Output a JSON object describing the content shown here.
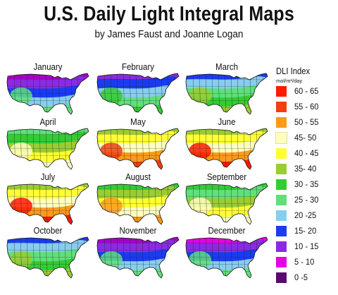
{
  "title": "U.S. Daily Light Integral Maps",
  "subtitle": "by James Faust and Joanne Logan",
  "legend": {
    "title": "DLI Index",
    "unit": "mol/m²/day",
    "items": [
      {
        "label": "60 - 65",
        "color": "#ff1a00"
      },
      {
        "label": "55 - 60",
        "color": "#f04010"
      },
      {
        "label": "50 - 55",
        "color": "#ff9a1a"
      },
      {
        "label": "45- 50",
        "color": "#ffffc0"
      },
      {
        "label": "40 - 45",
        "color": "#ffff33"
      },
      {
        "label": "35- 40",
        "color": "#9acd32"
      },
      {
        "label": "30 - 35",
        "color": "#33cc33"
      },
      {
        "label": "25 - 30",
        "color": "#5fe07a"
      },
      {
        "label": "20 -25",
        "color": "#87cdee"
      },
      {
        "label": "15- 20",
        "color": "#1a3cf0"
      },
      {
        "label": "10 - 15",
        "color": "#8a2be2"
      },
      {
        "label": "5 - 10",
        "color": "#e600e6"
      },
      {
        "label": "0 -5",
        "color": "#5a0a6e"
      }
    ]
  },
  "maps": [
    {
      "month": "January",
      "bands": [
        "#a600c8",
        "#8a2be2",
        "#1a3cf0",
        "#87cdee",
        "#5fe07a"
      ]
    },
    {
      "month": "February",
      "bands": [
        "#8a2be2",
        "#1a3cf0",
        "#87cdee",
        "#5fe07a",
        "#33cc33"
      ]
    },
    {
      "month": "March",
      "bands": [
        "#1a3cf0",
        "#87cdee",
        "#5fe07a",
        "#33cc33",
        "#9acd32"
      ]
    },
    {
      "month": "April",
      "bands": [
        "#5fe07a",
        "#33cc33",
        "#9acd32",
        "#ffff33",
        "#ffffc0"
      ]
    },
    {
      "month": "May",
      "bands": [
        "#9acd32",
        "#ffff33",
        "#ffffc0",
        "#ff9a1a",
        "#f04010"
      ]
    },
    {
      "month": "June",
      "bands": [
        "#9acd32",
        "#ffff33",
        "#ffffc0",
        "#ff9a1a",
        "#ff1a00"
      ]
    },
    {
      "month": "July",
      "bands": [
        "#9acd32",
        "#ffff33",
        "#ffffc0",
        "#ff9a1a",
        "#ff1a00"
      ]
    },
    {
      "month": "August",
      "bands": [
        "#33cc33",
        "#9acd32",
        "#ffff33",
        "#ffffc0",
        "#ff9a1a"
      ]
    },
    {
      "month": "September",
      "bands": [
        "#33cc33",
        "#5fe07a",
        "#9acd32",
        "#ffff33",
        "#ffffc0"
      ]
    },
    {
      "month": "October",
      "bands": [
        "#1a3cf0",
        "#87cdee",
        "#5fe07a",
        "#33cc33",
        "#9acd32"
      ]
    },
    {
      "month": "November",
      "bands": [
        "#a600c8",
        "#8a2be2",
        "#1a3cf0",
        "#87cdee",
        "#5fe07a"
      ]
    },
    {
      "month": "December",
      "bands": [
        "#e600e6",
        "#8a2be2",
        "#1a3cf0",
        "#87cdee",
        "#5fe07a"
      ]
    }
  ]
}
